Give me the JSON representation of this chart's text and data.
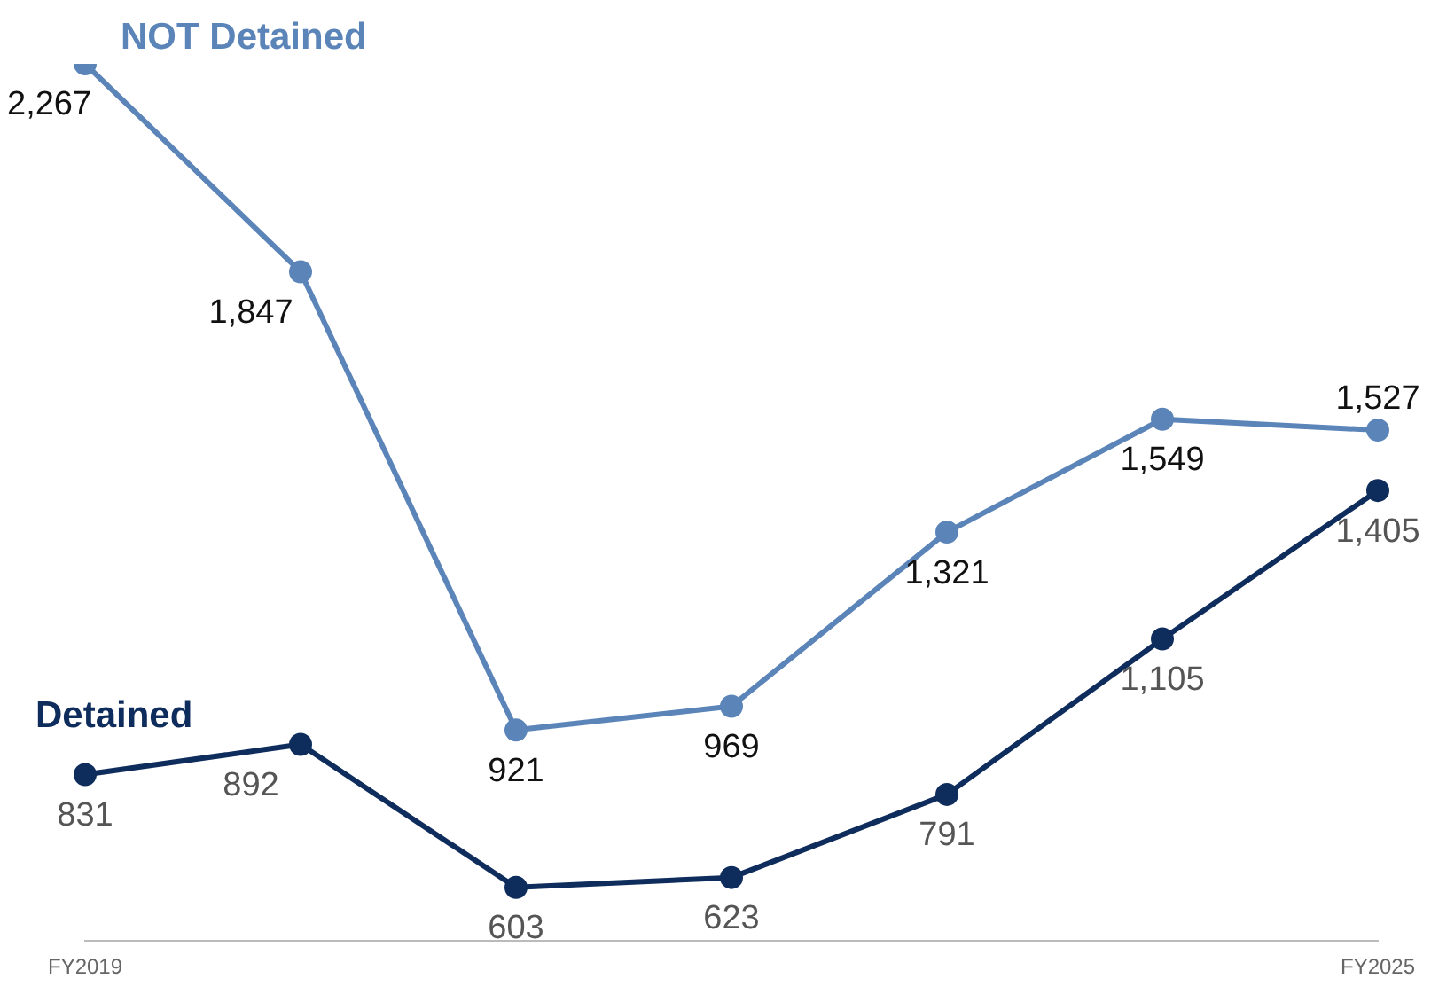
{
  "chart_data": {
    "type": "line",
    "categories": [
      "FY2019",
      null,
      null,
      null,
      null,
      null,
      "FY2025"
    ],
    "series": [
      {
        "name": "NOT Detained",
        "color": "#5b84b8",
        "values": [
          2267,
          1847,
          921,
          969,
          1321,
          1549,
          1527
        ],
        "value_labels": [
          "2,267",
          "1,847",
          "921",
          "969",
          "1,321",
          "1,549",
          "1,527"
        ]
      },
      {
        "name": "Detained",
        "color": "#0f2d5c",
        "values": [
          831,
          892,
          603,
          623,
          791,
          1105,
          1405
        ],
        "value_labels": [
          "831",
          "892",
          "603",
          "623",
          "791",
          "1,105",
          "1,405"
        ]
      }
    ],
    "marker": "circle",
    "line_style": "solid"
  }
}
